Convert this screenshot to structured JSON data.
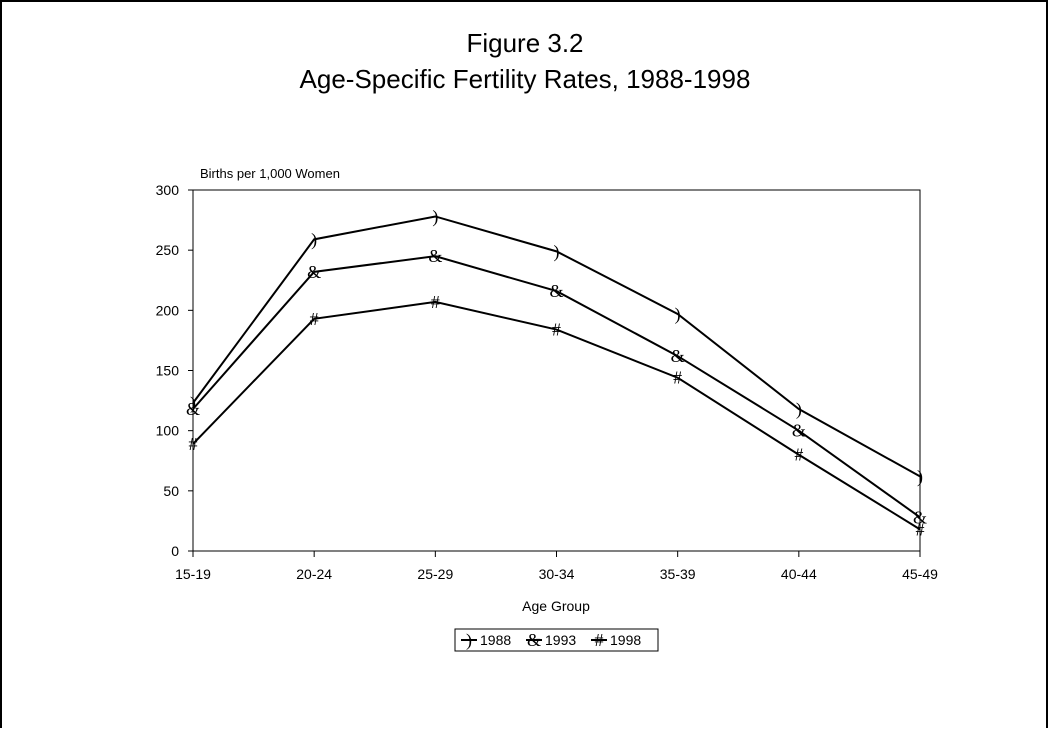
{
  "figure": {
    "label": "Figure 3.2",
    "title": "Age-Specific Fertility Rates, 1988-1998"
  },
  "chart_data": {
    "type": "line",
    "title": "Age-Specific Fertility Rates, 1988-1998",
    "xlabel": "Age Group",
    "ylabel": "Births per 1,000 Women",
    "categories": [
      "15-19",
      "20-24",
      "25-29",
      "30-34",
      "35-39",
      "40-44",
      "45-49"
    ],
    "ylim": [
      0,
      300
    ],
    "yticks": [
      0,
      50,
      100,
      150,
      200,
      250,
      300
    ],
    "grid": false,
    "legend_position": "bottom",
    "series": [
      {
        "name": "1988",
        "marker": ")",
        "values": [
          123,
          259,
          278,
          249,
          197,
          118,
          62
        ]
      },
      {
        "name": "1993",
        "marker": "&",
        "values": [
          118,
          232,
          245,
          216,
          162,
          100,
          28
        ]
      },
      {
        "name": "1998",
        "marker": "#",
        "values": [
          89,
          193,
          207,
          184,
          144,
          80,
          18
        ]
      }
    ]
  }
}
